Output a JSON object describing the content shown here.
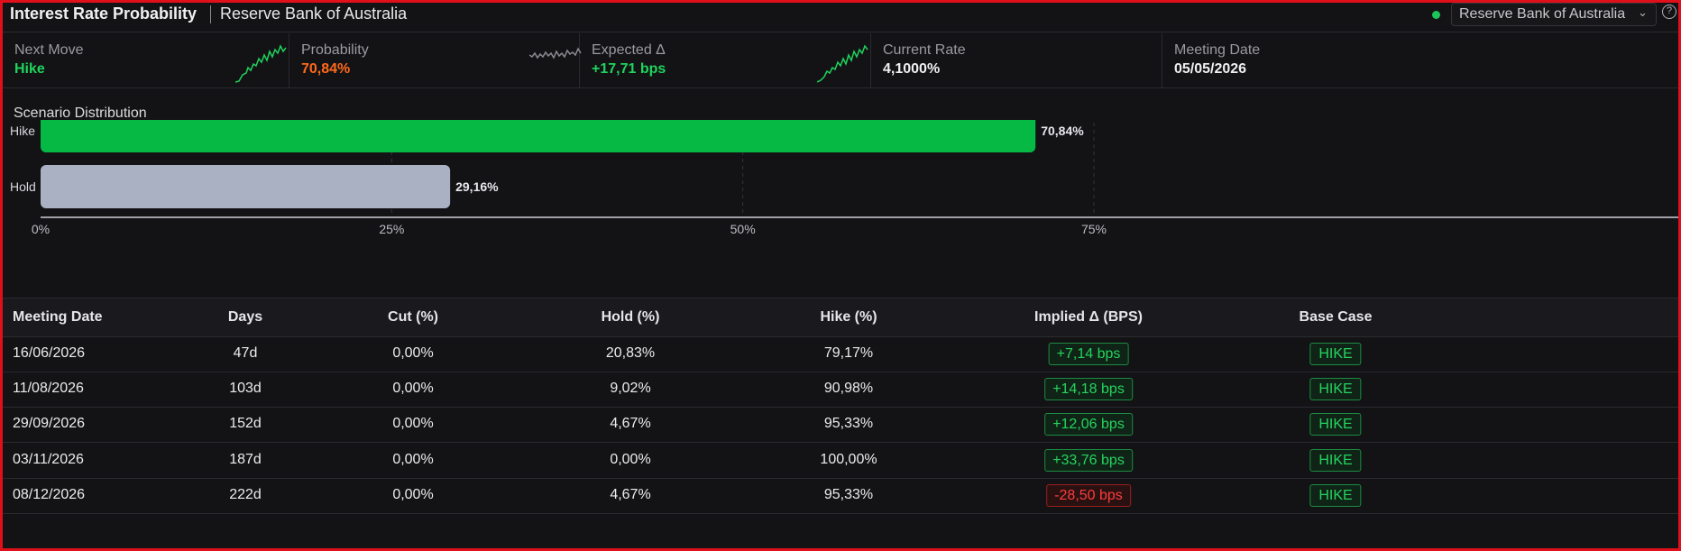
{
  "header": {
    "title": "Interest Rate Probability",
    "subtitle": "Reserve Bank of Australia",
    "bank_select": "Reserve Bank of Australia",
    "help": "?"
  },
  "stats": [
    {
      "label": "Next Move",
      "value": "Hike",
      "color": "#1fd35c",
      "spark_color": "#1fd35c"
    },
    {
      "label": "Probability",
      "value": "70,84%",
      "color": "#ff6a1a",
      "spark_color": "#8a8a90"
    },
    {
      "label": "Expected Δ",
      "value": "+17,71 bps",
      "color": "#1fd35c",
      "spark_color": "#1fd35c"
    },
    {
      "label": "Current Rate",
      "value": "4,1000%",
      "color": "#f0f0f0"
    },
    {
      "label": "Meeting Date",
      "value": "05/05/2026",
      "color": "#f0f0f0"
    }
  ],
  "scenario": {
    "title": "Scenario Distribution"
  },
  "chart_data": {
    "type": "bar",
    "orientation": "horizontal",
    "title": "Scenario Distribution",
    "categories": [
      "Hike",
      "Hold"
    ],
    "values": [
      70.84,
      29.16
    ],
    "value_labels": [
      "70,84%",
      "29,16%"
    ],
    "colors": [
      "#05b944",
      "#a9b1c2"
    ],
    "xlim": [
      0,
      100
    ],
    "xticks": [
      0,
      25,
      50,
      75
    ],
    "xtick_labels": [
      "0%",
      "25%",
      "50%",
      "75%"
    ],
    "grid": true
  },
  "table": {
    "headers": [
      "Meeting Date",
      "Days",
      "Cut (%)",
      "Hold (%)",
      "Hike (%)",
      "Implied Δ (BPS)",
      "Base Case"
    ],
    "rows": [
      {
        "date": "16/06/2026",
        "days": "47d",
        "cut": "0,00%",
        "hold": "20,83%",
        "hike": "79,17%",
        "implied": "+7,14 bps",
        "implied_sign": "pos",
        "base": "HIKE"
      },
      {
        "date": "11/08/2026",
        "days": "103d",
        "cut": "0,00%",
        "hold": "9,02%",
        "hike": "90,98%",
        "implied": "+14,18 bps",
        "implied_sign": "pos",
        "base": "HIKE"
      },
      {
        "date": "29/09/2026",
        "days": "152d",
        "cut": "0,00%",
        "hold": "4,67%",
        "hike": "95,33%",
        "implied": "+12,06 bps",
        "implied_sign": "pos",
        "base": "HIKE"
      },
      {
        "date": "03/11/2026",
        "days": "187d",
        "cut": "0,00%",
        "hold": "0,00%",
        "hike": "100,00%",
        "implied": "+33,76 bps",
        "implied_sign": "pos",
        "base": "HIKE"
      },
      {
        "date": "08/12/2026",
        "days": "222d",
        "cut": "0,00%",
        "hold": "4,67%",
        "hike": "95,33%",
        "implied": "-28,50 bps",
        "implied_sign": "neg",
        "base": "HIKE"
      }
    ]
  }
}
